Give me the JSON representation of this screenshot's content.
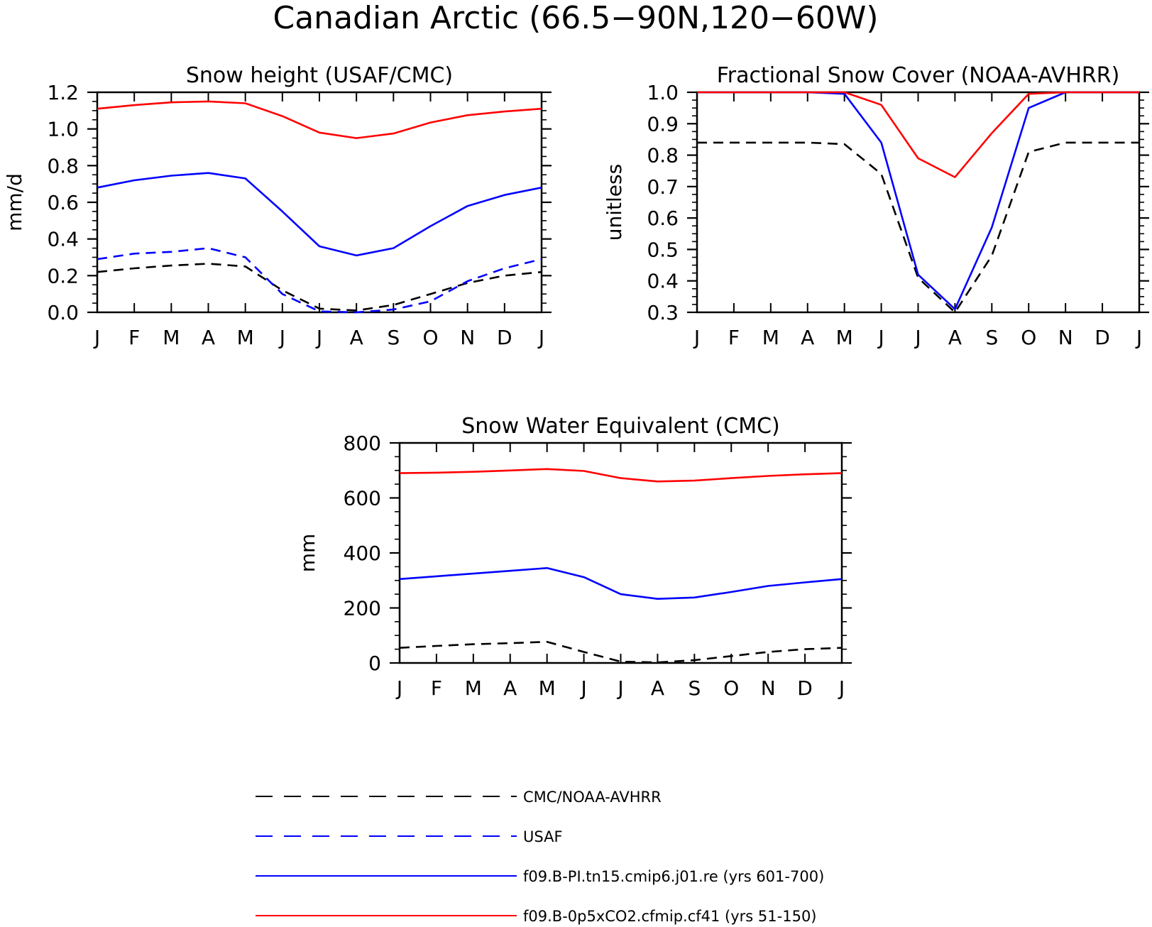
{
  "main_title": "Canadian Arctic (66.5−90N,120−60W)",
  "colors": {
    "obs_black": "#000000",
    "usaf_blue": "#0000ff",
    "pi_blue": "#0000ff",
    "co2_red": "#ff0000"
  },
  "legend": {
    "items": [
      {
        "label": "CMC/NOAA-AVHRR",
        "color": "#000000",
        "dash": true
      },
      {
        "label": "USAF",
        "color": "#0000ff",
        "dash": true
      },
      {
        "label": "f09.B-PI.tn15.cmip6.j01.re (yrs 601-700)",
        "color": "#0000ff",
        "dash": false
      },
      {
        "label": "f09.B-0p5xCO2.cfmip.cf41 (yrs 51-150)",
        "color": "#ff0000",
        "dash": false
      }
    ]
  },
  "chart_data": [
    {
      "type": "line",
      "title": "Snow height (USAF/CMC)",
      "xlabel": "",
      "ylabel": "mm/d",
      "categories": [
        "J",
        "F",
        "M",
        "A",
        "M",
        "J",
        "J",
        "A",
        "S",
        "O",
        "N",
        "D",
        "J"
      ],
      "ylim": [
        0,
        1.2
      ],
      "yticks": [
        0.0,
        0.2,
        0.4,
        0.6,
        0.8,
        1.0,
        1.2
      ],
      "ytick_labels": [
        "0.0",
        "0.2",
        "0.4",
        "0.6",
        "0.8",
        "1.0",
        "1.2"
      ],
      "yminor_step": 0.05,
      "grid": false,
      "series": [
        {
          "name": "CMC/NOAA-AVHRR",
          "color": "#000000",
          "dash": true,
          "values": [
            0.22,
            0.24,
            0.255,
            0.265,
            0.25,
            0.12,
            0.02,
            0.01,
            0.04,
            0.1,
            0.16,
            0.2,
            0.22
          ]
        },
        {
          "name": "USAF",
          "color": "#0000ff",
          "dash": true,
          "values": [
            0.29,
            0.32,
            0.33,
            0.35,
            0.3,
            0.1,
            0.005,
            0.0,
            0.015,
            0.06,
            0.17,
            0.24,
            0.29
          ]
        },
        {
          "name": "f09.B-PI.tn15.cmip6.j01.re (yrs 601-700)",
          "color": "#0000ff",
          "dash": false,
          "values": [
            0.68,
            0.72,
            0.745,
            0.76,
            0.73,
            0.55,
            0.36,
            0.31,
            0.35,
            0.47,
            0.58,
            0.64,
            0.68
          ]
        },
        {
          "name": "f09.B-0p5xCO2.cfmip.cf41 (yrs 51-150)",
          "color": "#ff0000",
          "dash": false,
          "values": [
            1.11,
            1.13,
            1.145,
            1.15,
            1.14,
            1.07,
            0.98,
            0.95,
            0.975,
            1.035,
            1.075,
            1.095,
            1.11
          ]
        }
      ]
    },
    {
      "type": "line",
      "title": "Fractional Snow Cover (NOAA-AVHRR)",
      "xlabel": "",
      "ylabel": "unitless",
      "categories": [
        "J",
        "F",
        "M",
        "A",
        "M",
        "J",
        "J",
        "A",
        "S",
        "O",
        "N",
        "D",
        "J"
      ],
      "ylim": [
        0.3,
        1.0
      ],
      "yticks": [
        0.3,
        0.4,
        0.5,
        0.6,
        0.7,
        0.8,
        0.9,
        1.0
      ],
      "ytick_labels": [
        "0.3",
        "0.4",
        "0.5",
        "0.6",
        "0.7",
        "0.8",
        "0.9",
        "1.0"
      ],
      "yminor_step": 0.025,
      "grid": false,
      "series": [
        {
          "name": "CMC/NOAA-AVHRR",
          "color": "#000000",
          "dash": true,
          "values": [
            0.84,
            0.84,
            0.84,
            0.84,
            0.835,
            0.74,
            0.41,
            0.3,
            0.48,
            0.81,
            0.84,
            0.84,
            0.84
          ]
        },
        {
          "name": "f09.B-PI.tn15.cmip6.j01.re (yrs 601-700)",
          "color": "#0000ff",
          "dash": false,
          "values": [
            1.0,
            1.0,
            1.0,
            1.0,
            0.995,
            0.84,
            0.42,
            0.31,
            0.57,
            0.95,
            1.0,
            1.0,
            1.0
          ]
        },
        {
          "name": "f09.B-0p5xCO2.cfmip.cf41 (yrs 51-150)",
          "color": "#ff0000",
          "dash": false,
          "values": [
            1.0,
            1.0,
            1.0,
            1.0,
            1.0,
            0.96,
            0.79,
            0.73,
            0.87,
            0.995,
            1.0,
            1.0,
            1.0
          ]
        }
      ]
    },
    {
      "type": "line",
      "title": "Snow Water Equivalent (CMC)",
      "xlabel": "",
      "ylabel": "mm",
      "categories": [
        "J",
        "F",
        "M",
        "A",
        "M",
        "J",
        "J",
        "A",
        "S",
        "O",
        "N",
        "D",
        "J"
      ],
      "ylim": [
        0,
        800
      ],
      "yticks": [
        0,
        200,
        400,
        600,
        800
      ],
      "ytick_labels": [
        "0",
        "200",
        "400",
        "600",
        "800"
      ],
      "yminor_step": 50,
      "grid": false,
      "series": [
        {
          "name": "CMC/NOAA-AVHRR",
          "color": "#000000",
          "dash": true,
          "values": [
            55,
            62,
            68,
            72,
            77,
            40,
            5,
            2,
            10,
            25,
            40,
            50,
            55
          ]
        },
        {
          "name": "f09.B-PI.tn15.cmip6.j01.re (yrs 601-700)",
          "color": "#0000ff",
          "dash": false,
          "values": [
            305,
            315,
            325,
            335,
            345,
            312,
            250,
            233,
            238,
            258,
            280,
            293,
            305
          ]
        },
        {
          "name": "f09.B-0p5xCO2.cfmip.cf41 (yrs 51-150)",
          "color": "#ff0000",
          "dash": false,
          "values": [
            690,
            692,
            695,
            700,
            705,
            698,
            672,
            660,
            663,
            672,
            680,
            686,
            690
          ]
        }
      ]
    }
  ]
}
